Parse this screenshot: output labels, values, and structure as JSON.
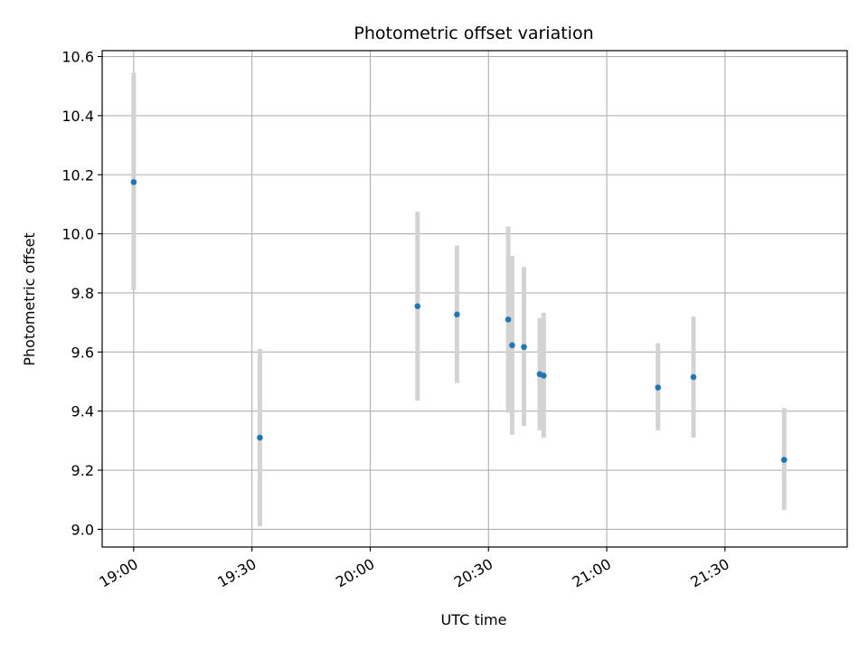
{
  "chart_data": {
    "type": "scatter",
    "title": "Photometric offset variation",
    "xlabel": "UTC time",
    "ylabel": "Photometric offset",
    "x_axis": "time",
    "xlim": [
      "18:52",
      "22:01"
    ],
    "ylim": [
      8.94,
      10.62
    ],
    "x_ticks": [
      "19:00",
      "19:30",
      "20:00",
      "20:30",
      "21:00",
      "21:30"
    ],
    "y_ticks": [
      9.0,
      9.2,
      9.4,
      9.6,
      9.8,
      10.0,
      10.2,
      10.4,
      10.6
    ],
    "grid": true,
    "legend": "none",
    "colors": {
      "point": "#1f77b4",
      "errorbar": "#d3d3d3",
      "grid": "#b0b0b0"
    },
    "points": [
      {
        "x": "19:00",
        "y": 10.175,
        "yerr_low": 9.81,
        "yerr_high": 10.545
      },
      {
        "x": "19:32",
        "y": 9.31,
        "yerr_low": 9.01,
        "yerr_high": 9.61
      },
      {
        "x": "20:12",
        "y": 9.755,
        "yerr_low": 9.435,
        "yerr_high": 10.075
      },
      {
        "x": "20:22",
        "y": 9.727,
        "yerr_low": 9.495,
        "yerr_high": 9.96
      },
      {
        "x": "20:35",
        "y": 9.71,
        "yerr_low": 9.395,
        "yerr_high": 10.025
      },
      {
        "x": "20:36",
        "y": 9.623,
        "yerr_low": 9.32,
        "yerr_high": 9.925
      },
      {
        "x": "20:39",
        "y": 9.617,
        "yerr_low": 9.35,
        "yerr_high": 9.888
      },
      {
        "x": "20:43",
        "y": 9.525,
        "yerr_low": 9.335,
        "yerr_high": 9.715
      },
      {
        "x": "20:44",
        "y": 9.52,
        "yerr_low": 9.31,
        "yerr_high": 9.733
      },
      {
        "x": "21:13",
        "y": 9.48,
        "yerr_low": 9.335,
        "yerr_high": 9.63
      },
      {
        "x": "21:22",
        "y": 9.515,
        "yerr_low": 9.31,
        "yerr_high": 9.72
      },
      {
        "x": "21:45",
        "y": 9.235,
        "yerr_low": 9.065,
        "yerr_high": 9.41
      }
    ]
  }
}
